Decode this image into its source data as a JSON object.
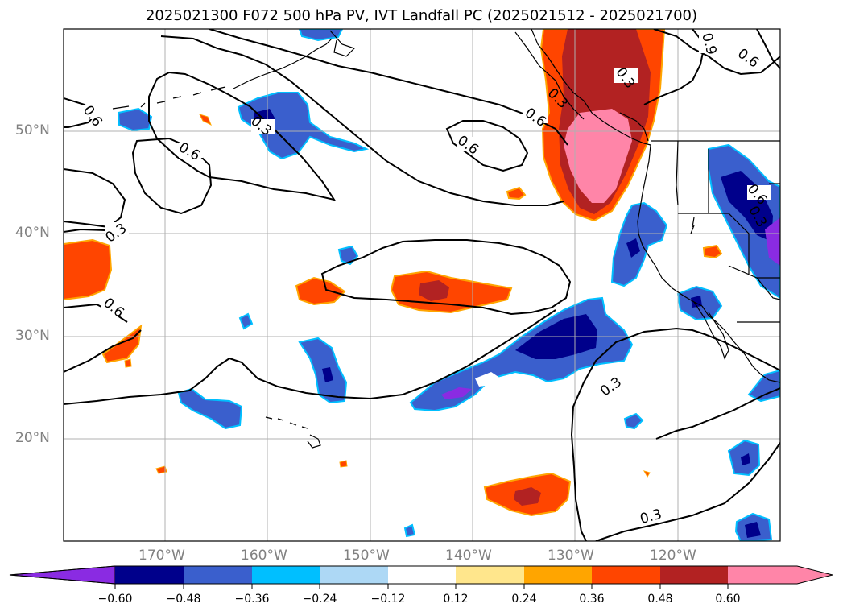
{
  "title": "2025021300 F072 500 hPa PV, IVT Landfall PC (2025021512 - 2025021700)",
  "lat_labels": [
    "50°N",
    "40°N",
    "30°N",
    "20°N"
  ],
  "lon_labels": [
    "170°W",
    "160°W",
    "150°W",
    "140°W",
    "130°W",
    "120°W"
  ],
  "contour_labels": [
    "0.6",
    "0.3",
    "0.6",
    "0.6",
    "0.3",
    "0.6",
    "0.3",
    "0.3",
    "0.9",
    "0.6",
    "0.3",
    "0.6",
    "0.6",
    "0.3",
    "0.3"
  ],
  "colorbar": {
    "ticks": [
      "−0.60",
      "−0.48",
      "−0.36",
      "−0.24",
      "−0.12",
      "0.12",
      "0.24",
      "0.36",
      "0.48",
      "0.60"
    ],
    "colors": [
      "#8a2be2",
      "#00008b",
      "#3a5fcd",
      "#00bfff",
      "#add8f5",
      "#ffffff",
      "#ffe68c",
      "#ffa500",
      "#ff4500",
      "#b22222",
      "#ff85a8"
    ]
  }
}
